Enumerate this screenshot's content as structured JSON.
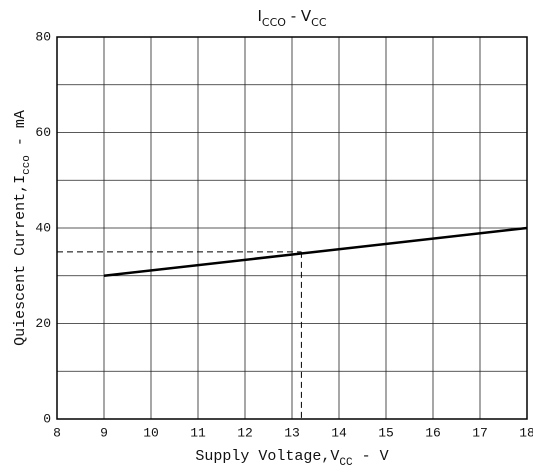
{
  "chart_data": {
    "type": "line",
    "title_parts": [
      "I",
      "CCO",
      " - V",
      "CC"
    ],
    "xlabel_parts": [
      "Supply Voltage,V",
      "CC",
      " - V"
    ],
    "ylabel_parts": [
      "Quiescent Current,I",
      "cco",
      " - mA"
    ],
    "x": [
      9,
      18
    ],
    "series": [
      {
        "color": "#000000",
        "values": [
          30,
          40
        ]
      }
    ],
    "xlim": [
      8,
      18
    ],
    "ylim": [
      0,
      80
    ],
    "xticks": [
      8,
      9,
      10,
      11,
      12,
      13,
      14,
      15,
      16,
      17,
      18
    ],
    "yticks": [
      0,
      20,
      40,
      60,
      80
    ],
    "yminor_grid": [
      10,
      30,
      50,
      70
    ],
    "grid": true,
    "reference": {
      "x": 13.2,
      "y": 35
    }
  }
}
